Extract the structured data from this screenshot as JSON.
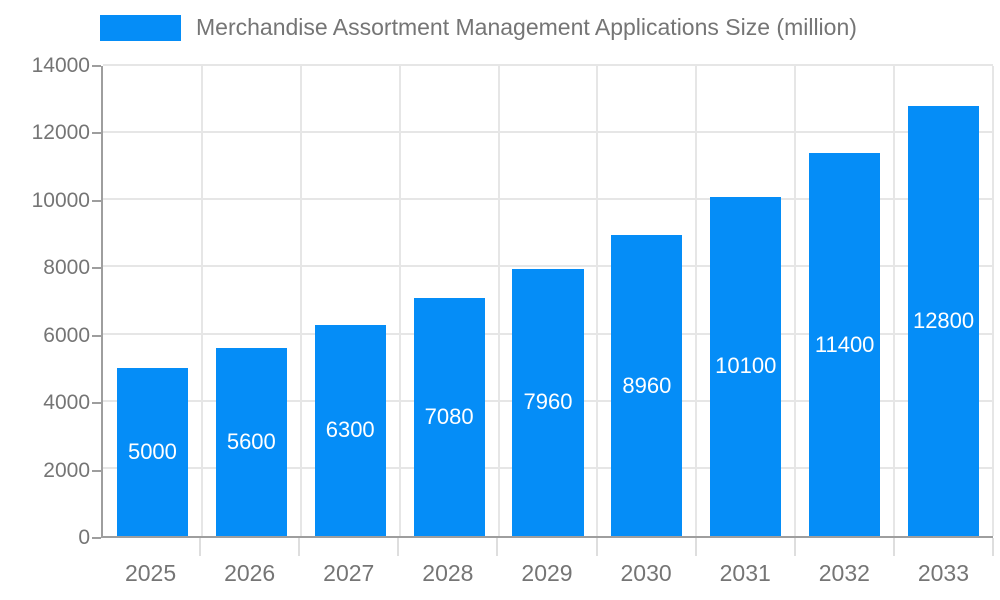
{
  "chart_data": {
    "type": "bar",
    "title": "Merchandise Assortment Management Applications Size (million)",
    "categories": [
      "2025",
      "2026",
      "2027",
      "2028",
      "2029",
      "2030",
      "2031",
      "2032",
      "2033"
    ],
    "values": [
      5000,
      5600,
      6300,
      7080,
      7960,
      8960,
      10100,
      11400,
      12800
    ],
    "xlabel": "",
    "ylabel": "",
    "ylim": [
      0,
      14000
    ],
    "ytick_step": 2000,
    "ytick_labels": [
      "0",
      "2000",
      "4000",
      "6000",
      "8000",
      "10000",
      "12000",
      "14000"
    ],
    "grid": true,
    "legend_position": "top",
    "colors": {
      "bar": "#058DF7",
      "value_label": "#ffffff",
      "text": "#757575",
      "gridline": "#e6e6e6",
      "axis": "#9e9e9e"
    }
  }
}
